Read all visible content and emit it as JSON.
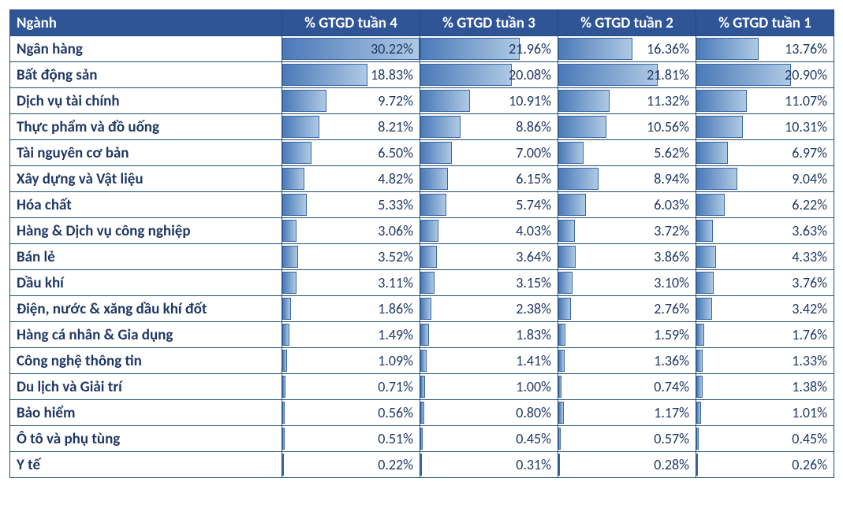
{
  "table": {
    "type": "table-with-databars",
    "columns": [
      "Ngành",
      "% GTGD tuần 4",
      "% GTGD tuần 3",
      "% GTGD tuần 2",
      "% GTGD tuần 1"
    ],
    "bar_max_percent": 30.22,
    "bar_gradient_start": "#4a7ab8",
    "bar_gradient_end": "#aec9e4",
    "bar_border_color": "#3a66a0",
    "header_bg_color": "#2f5597",
    "header_text_color": "#ffffff",
    "border_color": "#1f4e79",
    "text_color": "#203864",
    "header_fontsize": 19,
    "cell_fontsize": 19,
    "value_fontsize": 18,
    "rows": [
      {
        "sector": "Ngân hàng",
        "values": [
          30.22,
          21.96,
          16.36,
          13.76
        ]
      },
      {
        "sector": "Bất động sản",
        "values": [
          18.83,
          20.08,
          21.81,
          20.9
        ]
      },
      {
        "sector": "Dịch vụ tài chính",
        "values": [
          9.72,
          10.91,
          11.32,
          11.07
        ]
      },
      {
        "sector": "Thực phẩm và đồ uống",
        "values": [
          8.21,
          8.86,
          10.56,
          10.31
        ]
      },
      {
        "sector": "Tài nguyên cơ bản",
        "values": [
          6.5,
          7.0,
          5.62,
          6.97
        ]
      },
      {
        "sector": "Xây dựng và Vật liệu",
        "values": [
          4.82,
          6.15,
          8.94,
          9.04
        ]
      },
      {
        "sector": "Hóa chất",
        "values": [
          5.33,
          5.74,
          6.03,
          6.22
        ]
      },
      {
        "sector": "Hàng & Dịch vụ công nghiệp",
        "values": [
          3.06,
          4.03,
          3.72,
          3.63
        ]
      },
      {
        "sector": "Bán lẻ",
        "values": [
          3.52,
          3.64,
          3.86,
          4.33
        ]
      },
      {
        "sector": "Dầu khí",
        "values": [
          3.11,
          3.15,
          3.1,
          3.76
        ]
      },
      {
        "sector": "Điện, nước & xăng dầu khí đốt",
        "values": [
          1.86,
          2.38,
          2.76,
          3.42
        ]
      },
      {
        "sector": "Hàng cá nhân & Gia dụng",
        "values": [
          1.49,
          1.83,
          1.59,
          1.76
        ]
      },
      {
        "sector": "Công nghệ thông tin",
        "values": [
          1.09,
          1.41,
          1.36,
          1.33
        ]
      },
      {
        "sector": "Du lịch và Giải trí",
        "values": [
          0.71,
          1.0,
          0.74,
          1.38
        ]
      },
      {
        "sector": "Bảo hiểm",
        "values": [
          0.56,
          0.8,
          1.17,
          1.01
        ]
      },
      {
        "sector": "Ô tô và phụ tùng",
        "values": [
          0.51,
          0.45,
          0.57,
          0.45
        ]
      },
      {
        "sector": "Y tế",
        "values": [
          0.22,
          0.31,
          0.28,
          0.26
        ]
      }
    ]
  }
}
